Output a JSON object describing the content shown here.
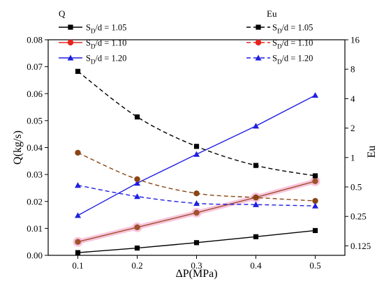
{
  "chart_data": {
    "type": "line",
    "x": [
      0.1,
      0.2,
      0.3,
      0.4,
      0.5
    ],
    "xlabel": "ΔP(MPa)",
    "x_ticks": [
      "0.1",
      "0.2",
      "0.3",
      "0.4",
      "0.5"
    ],
    "xlim": [
      0.05,
      0.55
    ],
    "ylabel_left": "Q(kg/s)",
    "ylim_left": [
      0,
      0.08
    ],
    "y_ticks_left": [
      "0.00",
      "0.01",
      "0.02",
      "0.03",
      "0.04",
      "0.05",
      "0.06",
      "0.07",
      "0.08"
    ],
    "ylabel_right": "Eu",
    "y_scale_right": "log2",
    "ylim_right": [
      0.1,
      16
    ],
    "y_ticks_right": [
      {
        "value": 0.125,
        "label": "0.125"
      },
      {
        "value": 0.25,
        "label": "0.25"
      },
      {
        "value": 0.5,
        "label": "0.5"
      },
      {
        "value": 1,
        "label": "1"
      },
      {
        "value": 2,
        "label": "2"
      },
      {
        "value": 4,
        "label": "4"
      },
      {
        "value": 8,
        "label": "8"
      },
      {
        "value": 16,
        "label": "16"
      }
    ],
    "legend_left": {
      "title": "Q",
      "placement": "top-left",
      "entries": [
        {
          "sub": "D",
          "label": "/d = 1.05",
          "color": "#000000",
          "marker": "square"
        },
        {
          "sub": "D",
          "label": "/d = 1.10",
          "color": "#e8231c",
          "marker": "circle"
        },
        {
          "sub": "D",
          "label": "/d = 1.20",
          "color": "#1f1fe0",
          "marker": "triangle"
        }
      ]
    },
    "legend_right": {
      "title": "Eu",
      "placement": "top-right",
      "entries": [
        {
          "sub": "D",
          "label": "/d = 1.05",
          "color": "#000000",
          "marker": "square"
        },
        {
          "sub": "D",
          "label": "/d = 1.10",
          "color": "#e8231c",
          "marker": "circle"
        },
        {
          "sub": "D",
          "label": "/d = 1.20",
          "color": "#1f1fe0",
          "marker": "triangle"
        }
      ]
    },
    "series": [
      {
        "name": "S_D/d = 1.05",
        "quantity": "Q",
        "axis": "left",
        "style": "solid",
        "color": "#000000",
        "marker_color": "#000000",
        "marker": "square",
        "values": [
          0.001,
          0.0027,
          0.0047,
          0.0069,
          0.0092
        ]
      },
      {
        "name": "S_D/d = 1.10",
        "quantity": "Q",
        "axis": "left",
        "style": "solid",
        "color": "#a0522d",
        "marker_color": "#a0522d",
        "marker": "circle",
        "halo": "#f6b8d6",
        "values": [
          0.005,
          0.0104,
          0.0158,
          0.0215,
          0.0275
        ]
      },
      {
        "name": "S_D/d = 1.20",
        "quantity": "Q",
        "axis": "left",
        "style": "solid",
        "color": "#1f1fe0",
        "marker_color": "#1f1fe0",
        "marker": "triangle",
        "values": [
          0.0148,
          0.0268,
          0.0375,
          0.048,
          0.0594
        ]
      },
      {
        "name": "S_D/d = 1.05",
        "quantity": "Eu",
        "axis": "right",
        "style": "dashed",
        "color": "#000000",
        "marker_color": "#000000",
        "marker": "square",
        "values": [
          7.6,
          2.6,
          1.3,
          0.83,
          0.65
        ]
      },
      {
        "name": "S_D/d = 1.10",
        "quantity": "Eu",
        "axis": "right",
        "style": "dashed",
        "color": "#8b4513",
        "marker_color": "#8b4513",
        "marker": "circle",
        "values": [
          1.12,
          0.6,
          0.43,
          0.39,
          0.36
        ]
      },
      {
        "name": "S_D/d = 1.20",
        "quantity": "Eu",
        "axis": "right",
        "style": "dashed",
        "color": "#1f1fe0",
        "marker_color": "#1f1fe0",
        "marker": "triangle",
        "values": [
          0.52,
          0.4,
          0.34,
          0.33,
          0.32
        ]
      }
    ]
  }
}
